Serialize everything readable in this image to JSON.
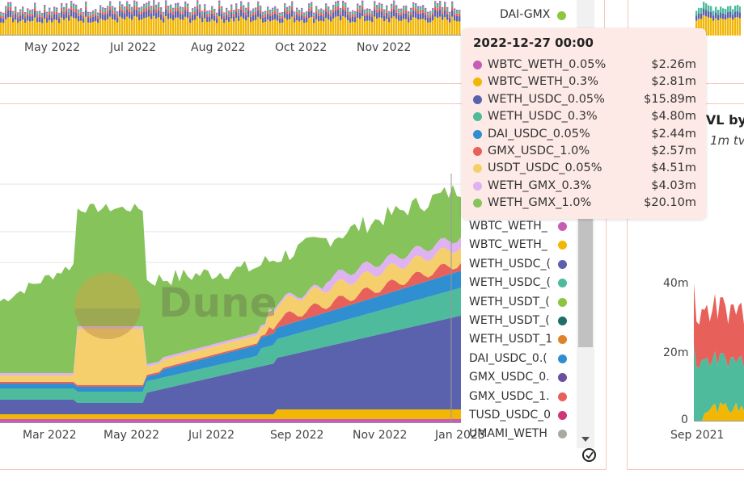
{
  "top_chart": {
    "x_ticks": [
      "May 2022",
      "Jul 2022",
      "Aug 2022",
      "Oct 2022",
      "Nov 2022"
    ],
    "legend_item": {
      "label": "DAI-GMX",
      "color": "#8cc63f"
    }
  },
  "chart_data": [
    {
      "type": "area",
      "title": "",
      "stacked": true,
      "x_ticks": [
        "Mar 2022",
        "May 2022",
        "Jul 2022",
        "Sep 2022",
        "Nov 2022",
        "Jan 2023"
      ],
      "watermark": "Dune",
      "series": [
        {
          "name": "WBTC_WETH_0.05%",
          "color": "#c75bb5"
        },
        {
          "name": "WBTC_WETH_0.3%",
          "color": "#f2b705"
        },
        {
          "name": "WETH_USDC_0.05%",
          "color": "#5b62ad"
        },
        {
          "name": "WETH_USDC_0.3%",
          "color": "#4dbb9c"
        },
        {
          "name": "DAI_USDC_0.05%",
          "color": "#2f8fd1"
        },
        {
          "name": "GMX_USDC_1.0%",
          "color": "#e8605a"
        },
        {
          "name": "USDT_USDC_0.05%",
          "color": "#f5cf6b"
        },
        {
          "name": "WETH_GMX_0.3%",
          "color": "#dfb2f0"
        },
        {
          "name": "WETH_GMX_1.0%",
          "color": "#86c35a"
        }
      ],
      "tooltip": {
        "date": "2022-12-27 00:00",
        "rows": [
          {
            "name": "WBTC_WETH_0.05%",
            "value": "$2.26m",
            "color": "#c75bb5"
          },
          {
            "name": "WBTC_WETH_0.3%",
            "value": "$2.81m",
            "color": "#f2b705"
          },
          {
            "name": "WETH_USDC_0.05%",
            "value": "$15.89m",
            "color": "#5b62ad"
          },
          {
            "name": "WETH_USDC_0.3%",
            "value": "$4.80m",
            "color": "#4dbb9c"
          },
          {
            "name": "DAI_USDC_0.05%",
            "value": "$2.44m",
            "color": "#2f8fd1"
          },
          {
            "name": "GMX_USDC_1.0%",
            "value": "$2.57m",
            "color": "#e8605a"
          },
          {
            "name": "USDT_USDC_0.05%",
            "value": "$4.51m",
            "color": "#f5cf6b"
          },
          {
            "name": "WETH_GMX_0.3%",
            "value": "$4.03m",
            "color": "#dfb2f0"
          },
          {
            "name": "WETH_GMX_1.0%",
            "value": "$20.10m",
            "color": "#86c35a"
          }
        ]
      },
      "legend": [
        {
          "label": "WBTC_WETH_",
          "color": "#c75bb5"
        },
        {
          "label": "WBTC_WETH_",
          "color": "#f2b705"
        },
        {
          "label": "WETH_USDC_(",
          "color": "#5b62ad"
        },
        {
          "label": "WETH_USDC_(",
          "color": "#4dbb9c"
        },
        {
          "label": "WETH_USDT_(",
          "color": "#8cc63f"
        },
        {
          "label": "WETH_USDT_(",
          "color": "#1f6e6a"
        },
        {
          "label": "WETH_USDT_1",
          "color": "#e0822a"
        },
        {
          "label": "DAI_USDC_0.(",
          "color": "#2f8fd1"
        },
        {
          "label": "GMX_USDC_0.",
          "color": "#6b4fa0"
        },
        {
          "label": "GMX_USDC_1.",
          "color": "#e8605a"
        },
        {
          "label": "TUSD_USDC_0",
          "color": "#d0357a"
        },
        {
          "label": "UMAMI_WETH",
          "color": "#a9a9a0"
        }
      ]
    },
    {
      "type": "area",
      "title": "TVL by to",
      "subtitle": "1m tv",
      "y_ticks": [
        "40m",
        "20m",
        "0"
      ],
      "x_ticks": [
        "Sep 2021"
      ]
    }
  ]
}
